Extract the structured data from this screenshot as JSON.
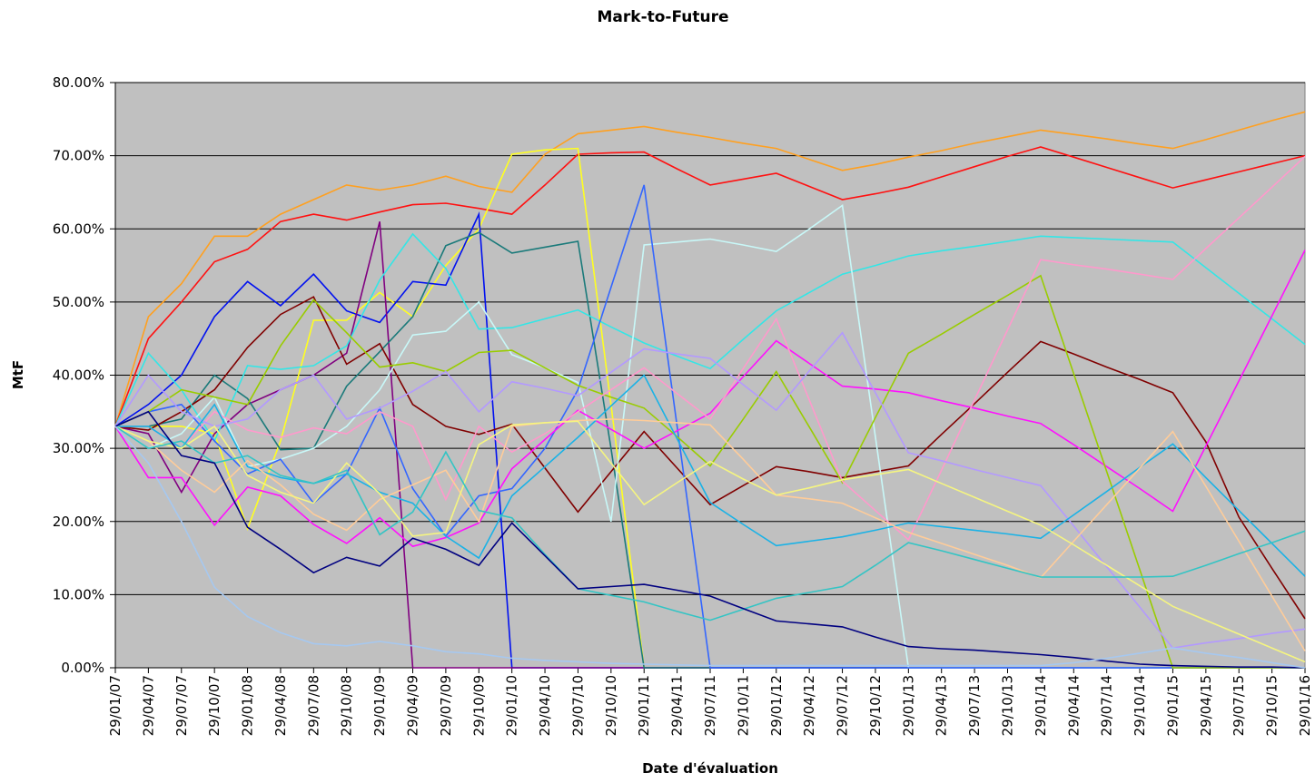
{
  "chart_data": {
    "type": "line",
    "title": "Mark-to-Future",
    "xlabel": "Date d'évaluation",
    "ylabel": "MtF",
    "categories": [
      "29/01/07",
      "29/04/07",
      "29/07/07",
      "29/10/07",
      "29/01/08",
      "29/04/08",
      "29/07/08",
      "29/10/08",
      "29/01/09",
      "29/04/09",
      "29/07/09",
      "29/10/09",
      "29/01/10",
      "29/04/10",
      "29/07/10",
      "29/10/10",
      "29/01/11",
      "29/04/11",
      "29/07/11",
      "29/10/11",
      "29/01/12",
      "29/04/12",
      "29/07/12",
      "29/10/12",
      "29/01/13",
      "29/04/13",
      "29/07/13",
      "29/10/13",
      "29/01/14",
      "29/04/14",
      "29/07/14",
      "29/10/14",
      "29/01/15",
      "29/04/15",
      "29/07/15",
      "29/10/15",
      "29/01/16"
    ],
    "ylim": [
      0,
      80
    ],
    "yticks": [
      {
        "value": 0,
        "label": "0.00%"
      },
      {
        "value": 10,
        "label": "10.00%"
      },
      {
        "value": 20,
        "label": "20.00%"
      },
      {
        "value": 30,
        "label": "30.00%"
      },
      {
        "value": 40,
        "label": "40.00%"
      },
      {
        "value": 50,
        "label": "50.00%"
      },
      {
        "value": 60,
        "label": "60.00%"
      },
      {
        "value": 70,
        "label": "70.00%"
      },
      {
        "value": 80,
        "label": "80.00%"
      }
    ],
    "grid": true,
    "background": "#c0c0c0",
    "series": [
      {
        "color": "#ffa020",
        "values": [
          33,
          48,
          52.5,
          59,
          59,
          62,
          64,
          66,
          65.3,
          66,
          67.2,
          65.8,
          65,
          70.2,
          73,
          73.5,
          74,
          73.2,
          72.5,
          71.7,
          71,
          69.5,
          68,
          68.8,
          69.8,
          70.7,
          71.7,
          72.6,
          73.5,
          72.9,
          72.3,
          71.6,
          71,
          72.2,
          73.5,
          74.8,
          76
        ]
      },
      {
        "color": "#ff1010",
        "values": [
          33,
          45,
          50,
          55.5,
          57.2,
          61,
          62,
          61.2,
          62.3,
          63.3,
          63.5,
          62.8,
          62,
          66,
          70.2,
          70.4,
          70.5,
          68.2,
          66,
          66.8,
          67.6,
          65.8,
          64,
          64.8,
          65.7,
          67.1,
          68.5,
          69.9,
          71.2,
          69.8,
          68.4,
          67,
          65.6,
          66.7,
          67.8,
          68.9,
          70
        ]
      },
      {
        "color": "#ffff20",
        "values": [
          33,
          33,
          33,
          32,
          19,
          31,
          47.5,
          47.5,
          51.3,
          48,
          55,
          60,
          70.2,
          70.8,
          71,
          36,
          0,
          0,
          0,
          0,
          0,
          0,
          0,
          0,
          0,
          0,
          0,
          0,
          0,
          0,
          0,
          0,
          0,
          0,
          0,
          0,
          0
        ]
      },
      {
        "color": "#0010f0",
        "values": [
          33,
          36,
          40,
          48,
          52.8,
          49.5,
          53.8,
          48.8,
          47.2,
          52.8,
          52.3,
          62,
          0,
          0,
          0,
          0,
          0,
          0,
          0,
          0,
          0,
          0,
          0,
          0,
          0,
          0,
          0,
          0,
          0,
          0,
          0,
          0,
          0,
          0,
          0,
          0,
          0
        ]
      },
      {
        "color": "#800080",
        "values": [
          33,
          32,
          24,
          32,
          36,
          38,
          40,
          43,
          61,
          0,
          0,
          0,
          0,
          0,
          0,
          0,
          0,
          0,
          0,
          0,
          0,
          0,
          0,
          0,
          0,
          0,
          0,
          0,
          0,
          0,
          0,
          0,
          0,
          0,
          0,
          0,
          0
        ]
      },
      {
        "color": "#1a7a7a",
        "values": [
          33,
          33,
          34,
          40,
          36.8,
          29.8,
          30,
          38.5,
          43.2,
          48,
          57.7,
          59.5,
          56.7,
          57.5,
          58.3,
          30,
          0,
          0,
          0,
          0,
          0,
          0,
          0,
          0,
          0,
          0,
          0,
          0,
          0,
          0,
          0,
          0,
          0,
          0,
          0,
          0,
          0
        ]
      },
      {
        "color": "#800000",
        "values": [
          33,
          32.5,
          35,
          38,
          43.8,
          48.3,
          50.7,
          41.5,
          44.3,
          36,
          33,
          31.9,
          33.3,
          27.3,
          21.3,
          26.8,
          32.3,
          27.3,
          22.3,
          24.9,
          27.5,
          26.8,
          26,
          26.8,
          27.6,
          31.9,
          36.1,
          40.4,
          44.6,
          42.9,
          41.1,
          39.4,
          37.6,
          30.9,
          20.6,
          13.6,
          6.7
        ]
      },
      {
        "color": "#33e6e6",
        "values": [
          33,
          43,
          38,
          31,
          41.3,
          40.8,
          41.3,
          44,
          53,
          59.3,
          54.6,
          46.3,
          46.5,
          47.7,
          48.9,
          46.6,
          44.4,
          42.6,
          40.9,
          44.9,
          48.8,
          51.3,
          53.8,
          55,
          56.3,
          57,
          57.6,
          58.3,
          59,
          58.8,
          58.6,
          58.4,
          58.2,
          54.7,
          51.2,
          47.7,
          44.2
        ]
      },
      {
        "color": "#c8f8f8",
        "values": [
          33,
          30,
          32,
          37,
          27.5,
          28.5,
          30,
          33,
          38,
          45.5,
          46,
          50,
          42.8,
          41,
          39,
          20,
          57.8,
          58.2,
          58.6,
          57.8,
          56.9,
          60,
          63.2,
          31.6,
          0,
          0,
          0,
          0,
          0,
          0,
          0,
          0,
          0,
          0,
          0,
          0,
          0
        ]
      },
      {
        "color": "#3366ff",
        "values": [
          33,
          35,
          36,
          31,
          26.5,
          28.5,
          22.5,
          26.5,
          35.5,
          24.5,
          18,
          23.5,
          24.5,
          30,
          38,
          52,
          66,
          33,
          0,
          0,
          0,
          0,
          0,
          0,
          0,
          0,
          0,
          0,
          0,
          0,
          0,
          0,
          0,
          0,
          0,
          0,
          0
        ]
      },
      {
        "color": "#ff10ff",
        "values": [
          33,
          26,
          26,
          19.5,
          24.7,
          23.5,
          19.6,
          17,
          20.5,
          16.6,
          17.8,
          19.8,
          27.2,
          31.2,
          35.2,
          32.6,
          30,
          32.4,
          34.8,
          39.8,
          44.7,
          41.6,
          38.5,
          38.1,
          37.6,
          36.5,
          35.5,
          34.4,
          33.4,
          30.5,
          27.5,
          24.5,
          21.4,
          30.3,
          39.2,
          48.1,
          57.1
        ]
      },
      {
        "color": "#99cc00",
        "values": [
          33,
          35,
          38,
          37,
          36,
          44,
          50.3,
          45.8,
          41.1,
          41.7,
          40.5,
          43.1,
          43.4,
          41,
          38.6,
          37,
          35.5,
          31.6,
          27.6,
          34,
          40.5,
          32.9,
          25.3,
          34.2,
          43,
          45.6,
          48.3,
          50.9,
          53.6,
          40.2,
          26.8,
          13.4,
          0,
          0,
          0,
          0,
          0
        ]
      },
      {
        "color": "#ff99cc",
        "values": [
          33,
          33,
          30,
          35,
          32.5,
          31.5,
          32.8,
          32,
          35,
          33,
          23,
          33,
          29.5,
          32,
          35,
          38,
          41,
          37.5,
          34,
          40.9,
          47.7,
          36.6,
          25.5,
          21.5,
          17.5,
          27,
          36.6,
          46.2,
          55.8,
          55.1,
          54.5,
          53.8,
          53.1,
          57.3,
          61.5,
          65.7,
          69.9
        ]
      },
      {
        "color": "#b399ff",
        "values": [
          33,
          40,
          35,
          33,
          34,
          38,
          40,
          34,
          35.5,
          37.8,
          40.5,
          35,
          39.1,
          38.2,
          37.2,
          40.4,
          43.6,
          42.9,
          42.3,
          38.7,
          35.2,
          40.6,
          45.8,
          37.6,
          29.4,
          28.3,
          27.1,
          26,
          24.9,
          19.4,
          13.8,
          8.3,
          2.7,
          3.4,
          4,
          4.7,
          5.3
        ]
      },
      {
        "color": "#1ab2e6",
        "values": [
          33,
          33,
          30,
          36,
          27.5,
          26,
          25.2,
          26.5,
          24,
          22.5,
          18,
          15,
          23.5,
          27.5,
          31.5,
          35.8,
          40,
          31.3,
          22.6,
          19.6,
          16.7,
          17.3,
          17.9,
          18.8,
          19.8,
          19.3,
          18.8,
          18.3,
          17.7,
          20.9,
          24.1,
          27.4,
          30.6,
          26,
          21.5,
          17,
          12.5
        ]
      },
      {
        "color": "#ffcc99",
        "values": [
          33,
          31,
          27,
          24,
          28.3,
          25,
          21,
          18.8,
          23,
          25,
          27,
          20,
          33,
          33.5,
          33.8,
          34,
          33.8,
          33.5,
          33.2,
          28.5,
          23.6,
          23.1,
          22.5,
          20.5,
          18.5,
          17,
          15.5,
          14,
          12.3,
          17.3,
          22.3,
          27.3,
          32.3,
          24.8,
          17.3,
          9.8,
          2.3
        ]
      },
      {
        "color": "#f5f580",
        "values": [
          33,
          31,
          30,
          33,
          26.3,
          24,
          22.5,
          28,
          23.8,
          18,
          18.5,
          30.5,
          33.2,
          33.5,
          33.7,
          28,
          22.3,
          25.3,
          28.2,
          25.8,
          23.6,
          24.6,
          25.7,
          26.4,
          27.1,
          25.2,
          23.3,
          21.4,
          19.5,
          16.8,
          14,
          11.2,
          8.4,
          6.5,
          4.6,
          2.7,
          0.8
        ]
      },
      {
        "color": "#33c4c4",
        "values": [
          33,
          30,
          31,
          28,
          29,
          26.3,
          25.2,
          27,
          18.2,
          21.3,
          29.5,
          21.5,
          20.5,
          15.5,
          10.8,
          9.9,
          9,
          7.7,
          6.5,
          8,
          9.5,
          10.3,
          11.1,
          14,
          17.1,
          16,
          14.8,
          13.6,
          12.4,
          12.4,
          12.4,
          12.4,
          12.5,
          14,
          15.6,
          17.1,
          18.7
        ]
      },
      {
        "color": "#000080",
        "values": [
          33,
          35,
          29,
          28,
          19.2,
          16.2,
          13,
          15.1,
          13.9,
          17.7,
          16.2,
          14,
          19.8,
          15.3,
          10.8,
          11.1,
          11.4,
          10.6,
          9.8,
          8.1,
          6.4,
          6,
          5.6,
          4.2,
          2.9,
          2.6,
          2.4,
          2.1,
          1.8,
          1.4,
          0.9,
          0.5,
          0.3,
          0.2,
          0.1,
          0.1,
          0
        ]
      },
      {
        "color": "#a6c8f0",
        "values": [
          33,
          28,
          20,
          11,
          7,
          4.8,
          3.3,
          3,
          3.6,
          3,
          2.2,
          1.9,
          1.3,
          1,
          0.8,
          0.6,
          0.5,
          0.4,
          0.3,
          0.3,
          0.3,
          0.3,
          0.3,
          0.3,
          0.3,
          0.3,
          0.3,
          0.3,
          0.3,
          0.7,
          1.3,
          2,
          2.7,
          2,
          1.4,
          0.7,
          0
        ]
      }
    ]
  }
}
